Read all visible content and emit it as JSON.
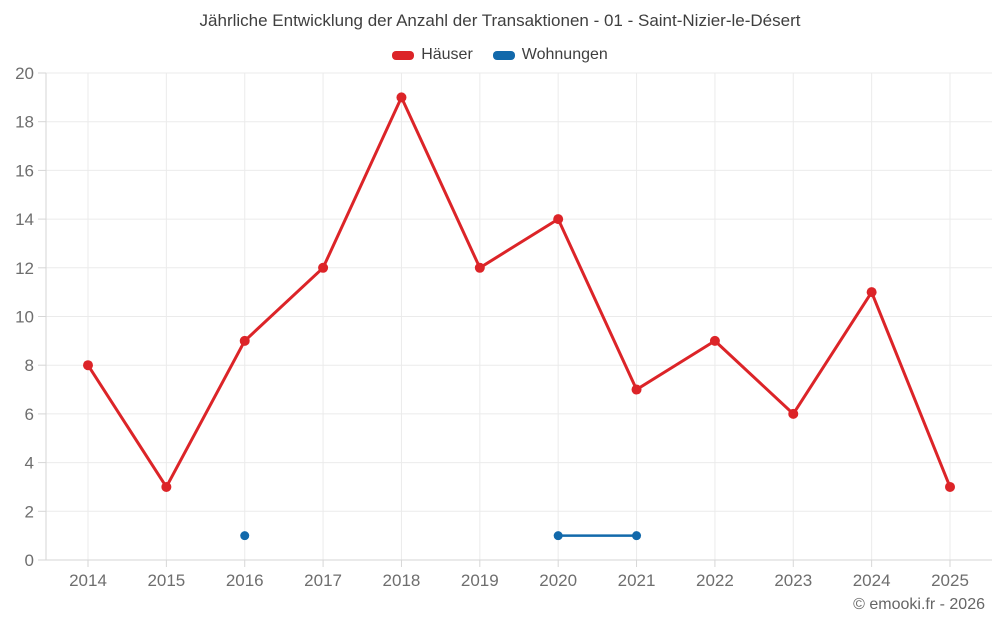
{
  "chart_data": {
    "type": "line",
    "title": "Jährliche Entwicklung der Anzahl der Transaktionen - 01 - Saint-Nizier-le-Désert",
    "categories": [
      "2014",
      "2015",
      "2016",
      "2017",
      "2018",
      "2019",
      "2020",
      "2021",
      "2022",
      "2023",
      "2024",
      "2025"
    ],
    "series": [
      {
        "name": "Häuser",
        "color": "#dc2428",
        "values": [
          8,
          3,
          9,
          12,
          19,
          12,
          14,
          7,
          9,
          6,
          11,
          3
        ]
      },
      {
        "name": "Wohnungen",
        "color": "#1269ab",
        "values": [
          null,
          null,
          1,
          null,
          null,
          null,
          1,
          1,
          null,
          null,
          null,
          null
        ]
      }
    ],
    "xlabel": "",
    "ylabel": "",
    "ylim": [
      0,
      20
    ],
    "ytick_step": 2,
    "grid": true,
    "legend_position": "top"
  },
  "colors": {
    "grid": "#ebebeb",
    "axis_line": "#d6d6d6",
    "tick_text": "#6e6e6e",
    "title_text": "#3f3f3f"
  },
  "footer": {
    "copyright": "© emooki.fr - 2026"
  }
}
